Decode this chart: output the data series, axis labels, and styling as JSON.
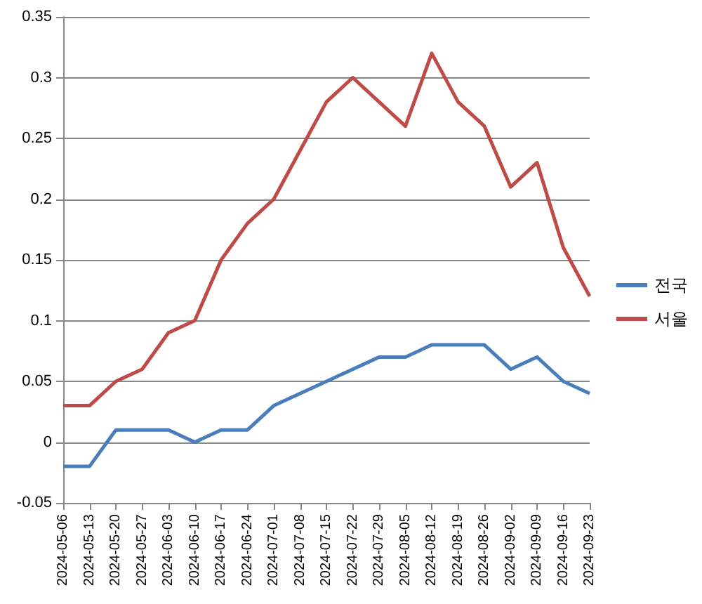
{
  "chart_data": {
    "type": "line",
    "categories": [
      "2024-05-06",
      "2024-05-13",
      "2024-05-20",
      "2024-05-27",
      "2024-06-03",
      "2024-06-10",
      "2024-06-17",
      "2024-06-24",
      "2024-07-01",
      "2024-07-08",
      "2024-07-15",
      "2024-07-22",
      "2024-07-29",
      "2024-08-05",
      "2024-08-12",
      "2024-08-19",
      "2024-08-26",
      "2024-09-02",
      "2024-09-09",
      "2024-09-16",
      "2024-09-23"
    ],
    "series": [
      {
        "name": "전국",
        "color": "#4a7ebb",
        "values": [
          -0.02,
          -0.02,
          0.01,
          0.01,
          0.01,
          0.0,
          0.01,
          0.01,
          0.03,
          0.04,
          0.05,
          0.06,
          0.07,
          0.07,
          0.08,
          0.08,
          0.08,
          0.06,
          0.07,
          0.05,
          0.04
        ]
      },
      {
        "name": "서울",
        "color": "#be4b48",
        "values": [
          0.03,
          0.03,
          0.05,
          0.06,
          0.09,
          0.1,
          0.15,
          0.18,
          0.2,
          0.24,
          0.28,
          0.3,
          0.28,
          0.26,
          0.32,
          0.28,
          0.26,
          0.21,
          0.23,
          0.16,
          0.12
        ]
      }
    ],
    "ylim": [
      -0.05,
      0.35
    ],
    "yticks": [
      -0.05,
      0,
      0.05,
      0.1,
      0.15,
      0.2,
      0.25,
      0.3,
      0.35
    ],
    "grid": "y",
    "legend": "right",
    "marker": "none",
    "line_style": "solid"
  }
}
